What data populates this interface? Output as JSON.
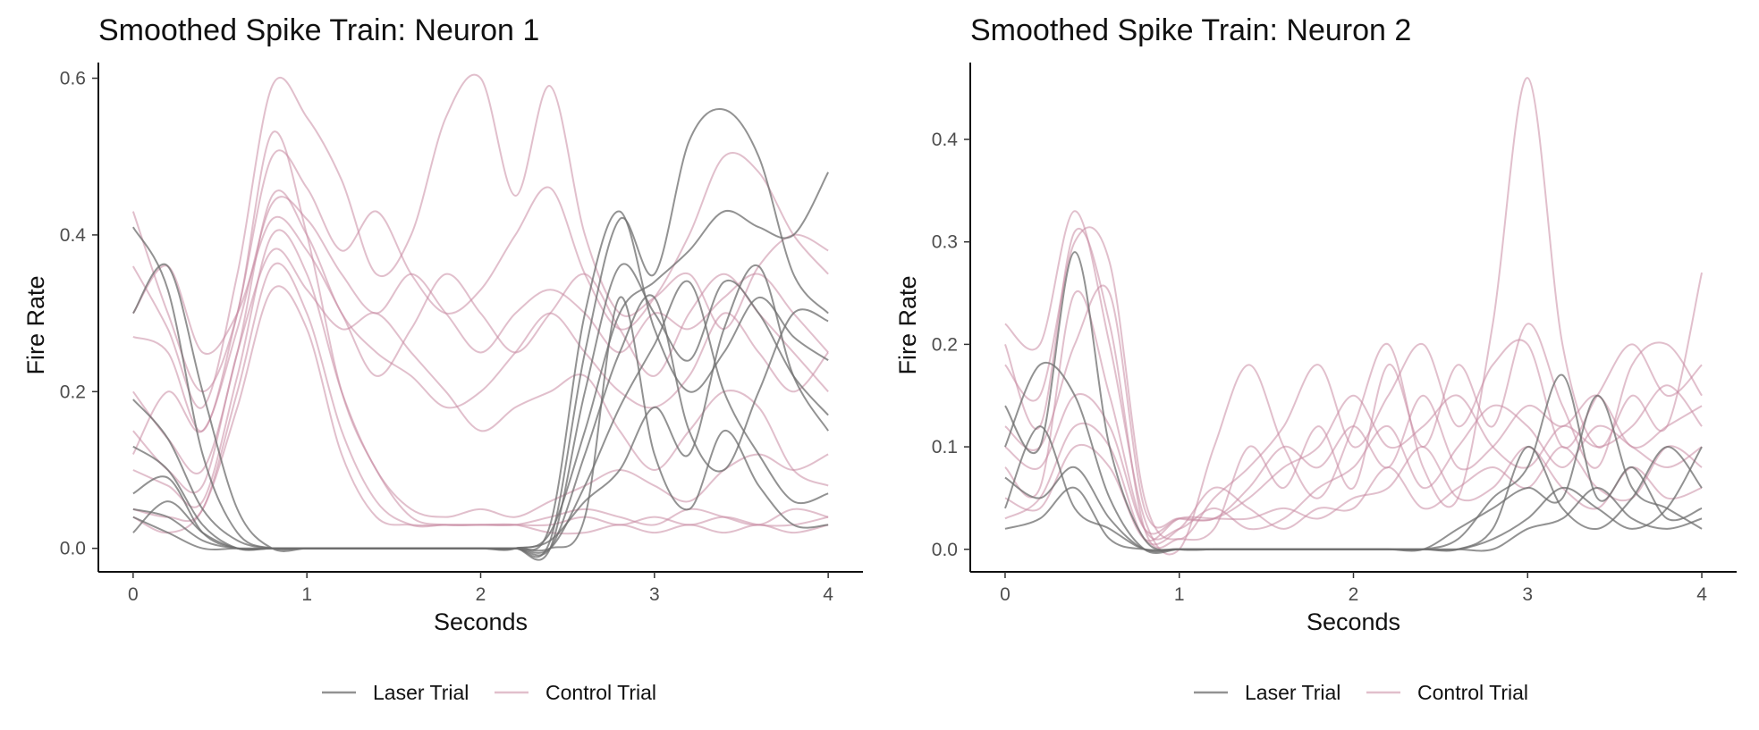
{
  "colors": {
    "laser": "#6e6e6e",
    "control": "#c98ba3"
  },
  "legend": {
    "position": "bottom",
    "items": [
      {
        "name": "Laser Trial",
        "color": "#6e6e6e"
      },
      {
        "name": "Control Trial",
        "color": "#c98ba3"
      }
    ]
  },
  "chart_data": [
    {
      "type": "line",
      "title": "Smoothed Spike Train: Neuron 1",
      "xlabel": "Seconds",
      "ylabel": "Fire Rate",
      "xlim": [
        -0.2,
        4.2
      ],
      "ylim": [
        -0.03,
        0.62
      ],
      "xticks": [
        0,
        1,
        2,
        3,
        4
      ],
      "yticks": [
        0.0,
        0.2,
        0.4,
        0.6
      ],
      "xtick_labels": [
        "0",
        "1",
        "2",
        "3",
        "4"
      ],
      "ytick_labels": [
        "0.0",
        "0.2",
        "0.4",
        "0.6"
      ],
      "grid": false,
      "x": [
        0,
        0.2,
        0.4,
        0.6,
        0.8,
        1.0,
        1.2,
        1.4,
        1.6,
        1.8,
        2.0,
        2.2,
        2.4,
        2.6,
        2.8,
        3.0,
        3.2,
        3.4,
        3.6,
        3.8,
        4.0
      ],
      "series": [
        {
          "group": "Laser Trial",
          "values": [
            0.41,
            0.33,
            0.12,
            0.02,
            0.0,
            0.0,
            0.0,
            0.0,
            0.0,
            0.0,
            0.0,
            0.0,
            0.02,
            0.15,
            0.3,
            0.34,
            0.38,
            0.43,
            0.41,
            0.4,
            0.48
          ]
        },
        {
          "group": "Laser Trial",
          "values": [
            0.3,
            0.36,
            0.2,
            0.05,
            0.0,
            0.0,
            0.0,
            0.0,
            0.0,
            0.0,
            0.0,
            0.0,
            0.01,
            0.25,
            0.42,
            0.35,
            0.52,
            0.56,
            0.5,
            0.35,
            0.3
          ]
        },
        {
          "group": "Laser Trial",
          "values": [
            0.19,
            0.14,
            0.05,
            0.01,
            0.0,
            0.0,
            0.0,
            0.0,
            0.0,
            0.0,
            0.0,
            0.0,
            0.0,
            0.2,
            0.36,
            0.3,
            0.24,
            0.34,
            0.3,
            0.22,
            0.17
          ]
        },
        {
          "group": "Laser Trial",
          "values": [
            0.13,
            0.1,
            0.03,
            0.0,
            0.0,
            0.0,
            0.0,
            0.0,
            0.0,
            0.0,
            0.0,
            0.0,
            0.03,
            0.3,
            0.43,
            0.28,
            0.2,
            0.25,
            0.32,
            0.27,
            0.24
          ]
        },
        {
          "group": "Laser Trial",
          "values": [
            0.07,
            0.09,
            0.02,
            0.0,
            0.0,
            0.0,
            0.0,
            0.0,
            0.0,
            0.0,
            0.0,
            0.0,
            0.0,
            0.12,
            0.25,
            0.32,
            0.15,
            0.1,
            0.2,
            0.3,
            0.29
          ]
        },
        {
          "group": "Laser Trial",
          "values": [
            0.05,
            0.04,
            0.01,
            0.0,
            0.0,
            0.0,
            0.0,
            0.0,
            0.0,
            0.0,
            0.0,
            0.0,
            0.0,
            0.08,
            0.18,
            0.26,
            0.34,
            0.2,
            0.12,
            0.06,
            0.07
          ]
        },
        {
          "group": "Laser Trial",
          "values": [
            0.02,
            0.06,
            0.02,
            0.0,
            0.0,
            0.0,
            0.0,
            0.0,
            0.0,
            0.0,
            0.0,
            0.0,
            0.01,
            0.06,
            0.1,
            0.18,
            0.12,
            0.28,
            0.36,
            0.22,
            0.15
          ]
        },
        {
          "group": "Laser Trial",
          "values": [
            0.04,
            0.02,
            0.0,
            0.0,
            0.0,
            0.0,
            0.0,
            0.0,
            0.0,
            0.0,
            0.0,
            0.0,
            0.0,
            0.04,
            0.32,
            0.12,
            0.05,
            0.15,
            0.08,
            0.03,
            0.03
          ]
        },
        {
          "group": "Control Trial",
          "values": [
            0.43,
            0.3,
            0.2,
            0.3,
            0.53,
            0.4,
            0.2,
            0.1,
            0.04,
            0.03,
            0.03,
            0.03,
            0.04,
            0.05,
            0.04,
            0.03,
            0.05,
            0.04,
            0.03,
            0.05,
            0.04
          ]
        },
        {
          "group": "Control Trial",
          "values": [
            0.36,
            0.28,
            0.18,
            0.35,
            0.59,
            0.55,
            0.47,
            0.35,
            0.4,
            0.55,
            0.6,
            0.45,
            0.59,
            0.4,
            0.3,
            0.32,
            0.35,
            0.28,
            0.36,
            0.4,
            0.38
          ]
        },
        {
          "group": "Control Trial",
          "values": [
            0.27,
            0.25,
            0.15,
            0.3,
            0.5,
            0.46,
            0.38,
            0.43,
            0.35,
            0.3,
            0.33,
            0.4,
            0.46,
            0.35,
            0.28,
            0.32,
            0.4,
            0.5,
            0.48,
            0.4,
            0.35
          ]
        },
        {
          "group": "Control Trial",
          "values": [
            0.2,
            0.14,
            0.1,
            0.25,
            0.45,
            0.4,
            0.3,
            0.25,
            0.22,
            0.18,
            0.2,
            0.25,
            0.3,
            0.25,
            0.2,
            0.18,
            0.22,
            0.3,
            0.25,
            0.2,
            0.25
          ]
        },
        {
          "group": "Control Trial",
          "values": [
            0.1,
            0.08,
            0.06,
            0.22,
            0.4,
            0.35,
            0.2,
            0.1,
            0.05,
            0.04,
            0.05,
            0.04,
            0.06,
            0.08,
            0.1,
            0.08,
            0.06,
            0.1,
            0.12,
            0.1,
            0.12
          ]
        },
        {
          "group": "Control Trial",
          "values": [
            0.05,
            0.04,
            0.05,
            0.2,
            0.36,
            0.3,
            0.15,
            0.06,
            0.03,
            0.03,
            0.03,
            0.03,
            0.03,
            0.04,
            0.03,
            0.04,
            0.03,
            0.04,
            0.03,
            0.03,
            0.04
          ]
        },
        {
          "group": "Control Trial",
          "values": [
            0.3,
            0.36,
            0.25,
            0.3,
            0.42,
            0.38,
            0.3,
            0.22,
            0.28,
            0.35,
            0.3,
            0.25,
            0.3,
            0.35,
            0.28,
            0.22,
            0.3,
            0.35,
            0.3,
            0.25,
            0.2
          ]
        },
        {
          "group": "Control Trial",
          "values": [
            0.15,
            0.1,
            0.08,
            0.25,
            0.38,
            0.33,
            0.28,
            0.3,
            0.25,
            0.2,
            0.15,
            0.18,
            0.2,
            0.22,
            0.15,
            0.1,
            0.15,
            0.2,
            0.18,
            0.1,
            0.08
          ]
        },
        {
          "group": "Control Trial",
          "values": [
            0.04,
            0.02,
            0.05,
            0.18,
            0.33,
            0.28,
            0.12,
            0.04,
            0.03,
            0.03,
            0.03,
            0.03,
            0.02,
            0.02,
            0.03,
            0.02,
            0.03,
            0.02,
            0.03,
            0.02,
            0.03
          ]
        },
        {
          "group": "Control Trial",
          "values": [
            0.12,
            0.2,
            0.15,
            0.28,
            0.44,
            0.42,
            0.35,
            0.3,
            0.35,
            0.3,
            0.25,
            0.3,
            0.33,
            0.3,
            0.25,
            0.3,
            0.28,
            0.32,
            0.35,
            0.3,
            0.25
          ]
        }
      ]
    },
    {
      "type": "line",
      "title": "Smoothed Spike Train: Neuron 2",
      "xlabel": "Seconds",
      "ylabel": "Fire Rate",
      "xlim": [
        -0.2,
        4.2
      ],
      "ylim": [
        -0.022,
        0.475
      ],
      "xticks": [
        0,
        1,
        2,
        3,
        4
      ],
      "yticks": [
        0.0,
        0.1,
        0.2,
        0.3,
        0.4
      ],
      "xtick_labels": [
        "0",
        "1",
        "2",
        "3",
        "4"
      ],
      "ytick_labels": [
        "0.0",
        "0.1",
        "0.2",
        "0.3",
        "0.4"
      ],
      "grid": false,
      "x": [
        0,
        0.2,
        0.4,
        0.6,
        0.8,
        1.0,
        1.2,
        1.4,
        1.6,
        1.8,
        2.0,
        2.2,
        2.4,
        2.6,
        2.8,
        3.0,
        3.2,
        3.4,
        3.6,
        3.8,
        4.0
      ],
      "series": [
        {
          "group": "Laser Trial",
          "values": [
            0.14,
            0.1,
            0.29,
            0.1,
            0.01,
            0.0,
            0.0,
            0.0,
            0.0,
            0.0,
            0.0,
            0.0,
            0.0,
            0.01,
            0.05,
            0.08,
            0.17,
            0.05,
            0.08,
            0.03,
            0.04
          ]
        },
        {
          "group": "Laser Trial",
          "values": [
            0.1,
            0.18,
            0.15,
            0.05,
            0.0,
            0.0,
            0.0,
            0.0,
            0.0,
            0.0,
            0.0,
            0.0,
            0.0,
            0.02,
            0.04,
            0.06,
            0.05,
            0.15,
            0.06,
            0.04,
            0.02
          ]
        },
        {
          "group": "Laser Trial",
          "values": [
            0.07,
            0.05,
            0.08,
            0.03,
            0.0,
            0.0,
            0.0,
            0.0,
            0.0,
            0.0,
            0.0,
            0.0,
            0.0,
            0.0,
            0.02,
            0.1,
            0.04,
            0.02,
            0.05,
            0.1,
            0.06
          ]
        },
        {
          "group": "Laser Trial",
          "values": [
            0.04,
            0.12,
            0.04,
            0.02,
            0.0,
            0.0,
            0.0,
            0.0,
            0.0,
            0.0,
            0.0,
            0.0,
            0.0,
            0.0,
            0.01,
            0.03,
            0.06,
            0.04,
            0.02,
            0.04,
            0.1
          ]
        },
        {
          "group": "Laser Trial",
          "values": [
            0.02,
            0.03,
            0.06,
            0.01,
            0.0,
            0.0,
            0.0,
            0.0,
            0.0,
            0.0,
            0.0,
            0.0,
            0.0,
            0.0,
            0.0,
            0.02,
            0.03,
            0.06,
            0.03,
            0.02,
            0.03
          ]
        },
        {
          "group": "Control Trial",
          "values": [
            0.22,
            0.2,
            0.33,
            0.2,
            0.03,
            0.0,
            0.1,
            0.18,
            0.1,
            0.05,
            0.12,
            0.2,
            0.08,
            0.05,
            0.22,
            0.46,
            0.2,
            0.1,
            0.15,
            0.12,
            0.27
          ]
        },
        {
          "group": "Control Trial",
          "values": [
            0.18,
            0.15,
            0.3,
            0.28,
            0.05,
            0.01,
            0.05,
            0.08,
            0.12,
            0.18,
            0.1,
            0.15,
            0.2,
            0.12,
            0.18,
            0.2,
            0.1,
            0.15,
            0.2,
            0.15,
            0.18
          ]
        },
        {
          "group": "Control Trial",
          "values": [
            0.12,
            0.1,
            0.2,
            0.25,
            0.04,
            0.03,
            0.03,
            0.05,
            0.08,
            0.1,
            0.15,
            0.1,
            0.12,
            0.15,
            0.1,
            0.08,
            0.12,
            0.1,
            0.12,
            0.16,
            0.12
          ]
        },
        {
          "group": "Control Trial",
          "values": [
            0.08,
            0.06,
            0.25,
            0.15,
            0.02,
            0.02,
            0.04,
            0.02,
            0.03,
            0.06,
            0.08,
            0.12,
            0.06,
            0.1,
            0.14,
            0.12,
            0.08,
            0.12,
            0.1,
            0.08,
            0.1
          ]
        },
        {
          "group": "Control Trial",
          "values": [
            0.05,
            0.04,
            0.1,
            0.08,
            0.01,
            0.03,
            0.03,
            0.03,
            0.04,
            0.03,
            0.05,
            0.06,
            0.1,
            0.05,
            0.06,
            0.1,
            0.06,
            0.04,
            0.08,
            0.05,
            0.06
          ]
        },
        {
          "group": "Control Trial",
          "values": [
            0.2,
            0.12,
            0.31,
            0.22,
            0.02,
            0.01,
            0.02,
            0.1,
            0.06,
            0.12,
            0.06,
            0.18,
            0.1,
            0.18,
            0.12,
            0.22,
            0.14,
            0.08,
            0.18,
            0.2,
            0.15
          ]
        },
        {
          "group": "Control Trial",
          "values": [
            0.03,
            0.05,
            0.12,
            0.1,
            0.01,
            0.02,
            0.06,
            0.04,
            0.02,
            0.04,
            0.04,
            0.08,
            0.04,
            0.06,
            0.08,
            0.06,
            0.1,
            0.06,
            0.05,
            0.1,
            0.08
          ]
        },
        {
          "group": "Control Trial",
          "values": [
            0.1,
            0.08,
            0.15,
            0.12,
            0.02,
            0.03,
            0.03,
            0.06,
            0.1,
            0.08,
            0.12,
            0.08,
            0.15,
            0.08,
            0.1,
            0.14,
            0.12,
            0.15,
            0.1,
            0.12,
            0.14
          ]
        }
      ]
    }
  ]
}
